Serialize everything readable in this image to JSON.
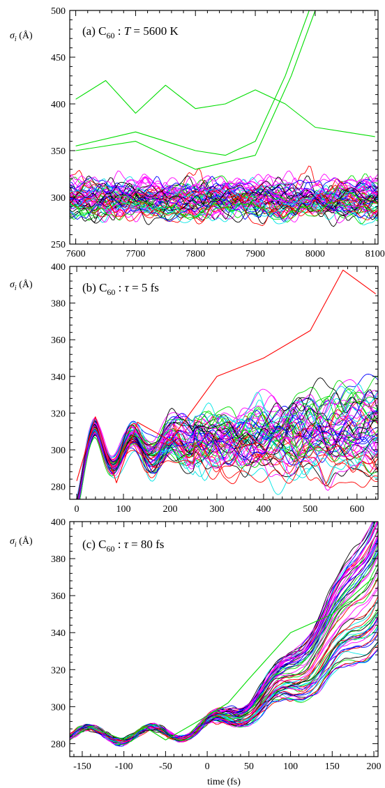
{
  "figure": {
    "xlabel": "time (fs)"
  },
  "chart_data": [
    {
      "type": "line",
      "panel": "a",
      "title_prefix": "(a) C",
      "title_sub": "60",
      "title_sep": " :  ",
      "title_var": "T",
      "title_rest": " = 5600 K",
      "ylabel_sym": "σ",
      "ylabel_sub": "i",
      "ylabel_unit": " (Å)",
      "xlim": [
        7590,
        8105
      ],
      "ylim": [
        250,
        500
      ],
      "xticks": [
        7600,
        7700,
        7800,
        7900,
        8000,
        8100
      ],
      "yticks": [
        250,
        300,
        350,
        400,
        450,
        500
      ],
      "n_lines": 60,
      "series_colors": [
        "#000000",
        "#ff0000",
        "#00dd00",
        "#0000ff",
        "#00e5e5",
        "#ff00ff",
        "#ff00ff"
      ],
      "notable_series": [
        {
          "x": [
            7600,
            7650,
            7700,
            7750,
            7800,
            7850,
            7900,
            7950,
            8000,
            8050,
            8100
          ],
          "y": [
            405,
            425,
            390,
            420,
            395,
            400,
            415,
            400,
            375,
            370,
            365
          ]
        },
        {
          "x": [
            7600,
            7700,
            7800,
            7850,
            7900,
            7950,
            7990
          ],
          "y": [
            355,
            370,
            350,
            345,
            360,
            430,
            500
          ]
        },
        {
          "x": [
            7600,
            7700,
            7800,
            7900,
            7960,
            8000
          ],
          "y": [
            350,
            360,
            330,
            345,
            430,
            500
          ]
        }
      ]
    },
    {
      "type": "line",
      "panel": "b",
      "title_prefix": "(b) C",
      "title_sub": "60",
      "title_sep": " :  ",
      "title_var": "τ",
      "title_rest": " = 5 fs",
      "ylabel_sym": "σ",
      "ylabel_sub": "i",
      "ylabel_unit": " (Å)",
      "xlim": [
        -15,
        645
      ],
      "ylim": [
        273,
        400
      ],
      "xticks": [
        0,
        100,
        200,
        300,
        400,
        500,
        600
      ],
      "yticks": [
        280,
        300,
        320,
        340,
        360,
        380,
        400
      ],
      "n_lines": 60,
      "series_colors": [
        "#000000",
        "#ff0000",
        "#00dd00",
        "#0000ff",
        "#00e5e5",
        "#ff00ff",
        "#ff00ff"
      ],
      "notable_series": [
        {
          "x": [
            0,
            40,
            85,
            130,
            200,
            300,
            400,
            500,
            570,
            640
          ],
          "y": [
            283,
            318,
            282,
            315,
            305,
            340,
            350,
            365,
            398,
            385
          ]
        }
      ]
    },
    {
      "type": "line",
      "panel": "c",
      "title_prefix": "(c) C",
      "title_sub": "60",
      "title_sep": " :  ",
      "title_var": "τ",
      "title_rest": " = 80 fs",
      "ylabel_sym": "σ",
      "ylabel_sub": "i",
      "ylabel_unit": " (Å)",
      "xlim": [
        -165,
        205
      ],
      "ylim": [
        273,
        400
      ],
      "xticks": [
        -150,
        -100,
        -50,
        0,
        50,
        100,
        150,
        200
      ],
      "yticks": [
        280,
        300,
        320,
        340,
        360,
        380,
        400
      ],
      "n_lines": 60,
      "series_colors": [
        "#000000",
        "#ff0000",
        "#00dd00",
        "#0000ff",
        "#00e5e5",
        "#ff00ff",
        "#ff00ff"
      ],
      "notable_series": [
        {
          "x": [
            -160,
            -140,
            -100,
            -75,
            -50,
            0,
            25,
            50,
            100,
            150,
            200
          ],
          "y": [
            284,
            289,
            282,
            289,
            282,
            295,
            302,
            315,
            340,
            350,
            370
          ]
        }
      ]
    }
  ]
}
